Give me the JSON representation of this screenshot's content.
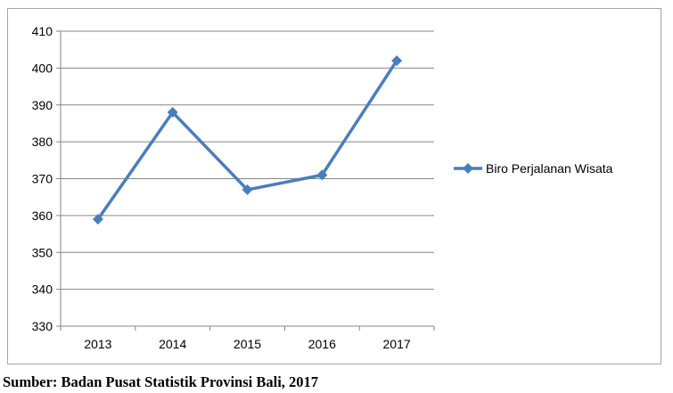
{
  "chart_data": {
    "type": "line",
    "x": [
      "2013",
      "2014",
      "2015",
      "2016",
      "2017"
    ],
    "series": [
      {
        "name": "Biro Perjalanan Wisata",
        "values": [
          359,
          388,
          367,
          371,
          402
        ],
        "color": "#4a7ebb"
      }
    ],
    "ylim": [
      330,
      410
    ],
    "yticks": [
      330,
      340,
      350,
      360,
      370,
      380,
      390,
      400,
      410
    ],
    "grid": true,
    "legend": "right",
    "marker": "diamond"
  },
  "source": "Sumber: Badan Pusat Statistik Provinsi Bali, 2017"
}
